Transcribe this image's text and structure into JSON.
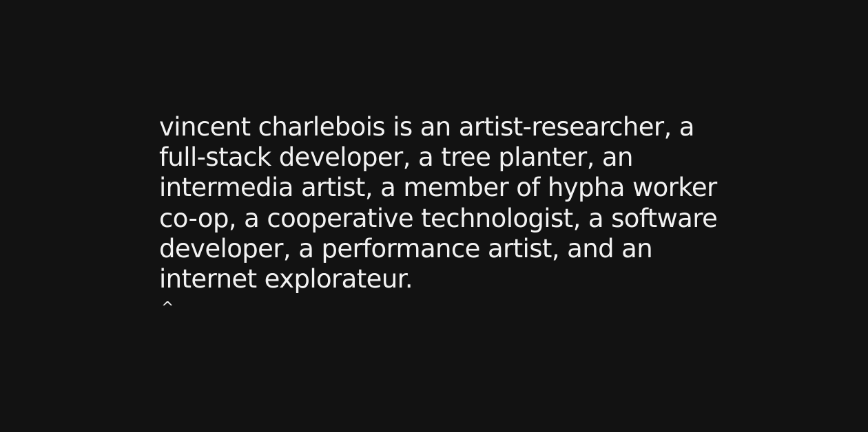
{
  "bio": {
    "lines": [
      "vincent charlebois is an artist-researcher, a",
      "full-stack developer, a tree planter, an",
      "intermedia artist, a member of hypha worker",
      "co-op, a cooperative technologist, a software",
      "developer, a performance artist, and an",
      "internet explorateur."
    ]
  },
  "nav": {
    "caret_symbol": "^",
    "caret_icon": "caret-up-icon"
  },
  "colors": {
    "background": "#121212",
    "text": "#f2f2f2"
  }
}
